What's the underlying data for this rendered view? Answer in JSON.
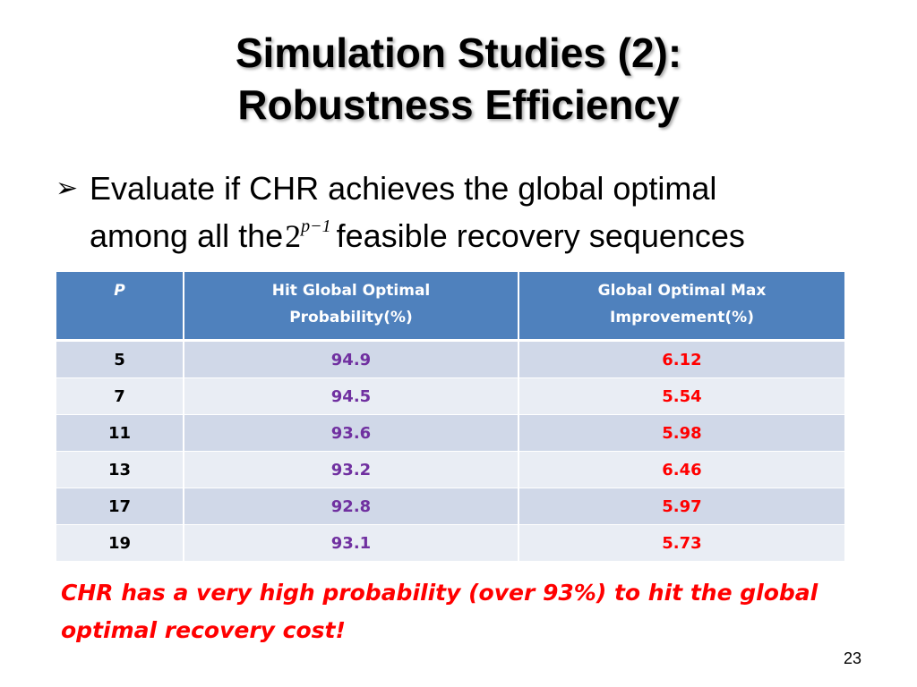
{
  "slide": {
    "title_line1": "Simulation Studies (2):",
    "title_line2": "Robustness Efficiency",
    "bullet_symbol": "➢",
    "bullet_line1": "Evaluate if CHR achieves the global optimal",
    "bullet_line2_before": "among all the",
    "math_base": "2",
    "math_exponent": "p−1",
    "bullet_line2_after": "feasible recovery sequences",
    "conclusion_line1": "CHR has a very high probability (over 93%) to hit the global",
    "conclusion_line2": "optimal recovery cost!",
    "page_number": "23"
  },
  "table": {
    "headers": {
      "p": "P",
      "hit_line1": "Hit Global Optimal",
      "hit_line2": "Probability(%)",
      "imp_line1": "Global Optimal Max",
      "imp_line2": "Improvement(%)"
    },
    "rows": [
      {
        "p": "5",
        "hit": "94.9",
        "imp": "6.12"
      },
      {
        "p": "7",
        "hit": "94.5",
        "imp": "5.54"
      },
      {
        "p": "11",
        "hit": "93.6",
        "imp": "5.98"
      },
      {
        "p": "13",
        "hit": "93.2",
        "imp": "6.46"
      },
      {
        "p": "17",
        "hit": "92.8",
        "imp": "5.97"
      },
      {
        "p": "19",
        "hit": "93.1",
        "imp": "5.73"
      }
    ]
  },
  "colors": {
    "header_bg": "#4f81bd",
    "row_odd": "#d0d8e8",
    "row_even": "#e9edf4",
    "hit_text": "#7030a0",
    "improvement_text": "#ff0000",
    "conclusion_text": "#ff0000"
  }
}
